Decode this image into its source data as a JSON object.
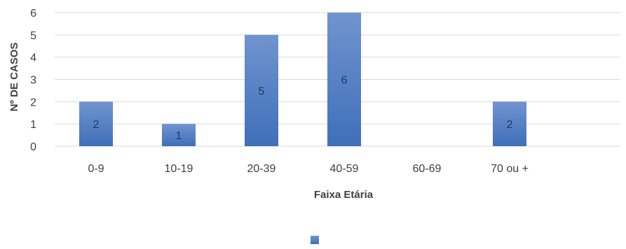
{
  "chart_data": {
    "type": "bar",
    "categories": [
      "0-9",
      "10-19",
      "20-39",
      "40-59",
      "60-69",
      "70 ou +"
    ],
    "values": [
      2,
      1,
      5,
      6,
      0,
      2
    ],
    "data_labels": [
      "2",
      "1",
      "5",
      "6",
      "",
      "2"
    ],
    "title": "",
    "xlabel": "Faixa Etária",
    "ylabel": "Nº DE CASOS",
    "ylim": [
      0,
      6
    ],
    "yticks": [
      "0",
      "1",
      "2",
      "3",
      "4",
      "5",
      "6"
    ],
    "grid": true,
    "legend": "bottom",
    "colors": {
      "bar_top": "#7094cf",
      "bar_bottom": "#3f6fb9",
      "data_label": "#1f3864",
      "text": "#404040",
      "grid": "#d9d9d9"
    }
  }
}
